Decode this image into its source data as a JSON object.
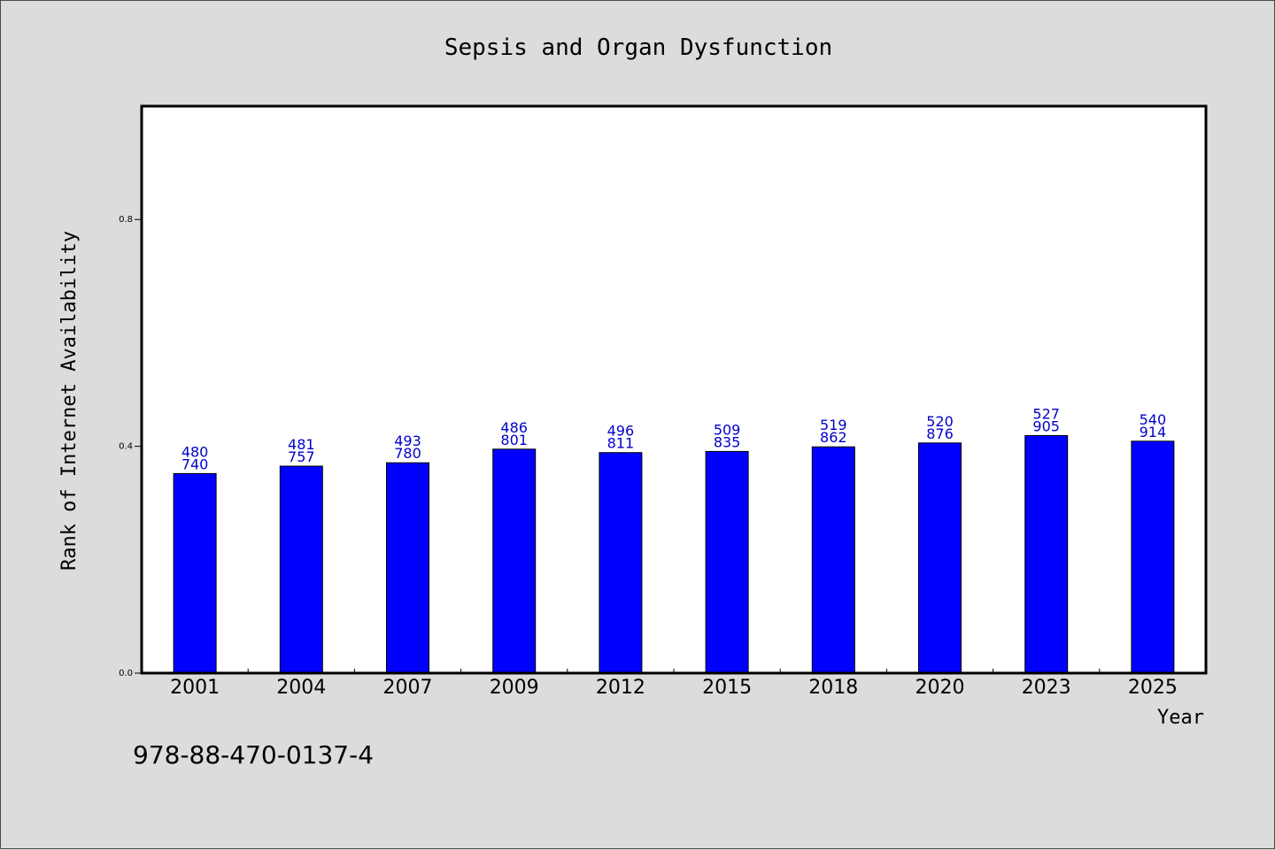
{
  "chart_data": {
    "type": "bar",
    "title": "Sepsis and Organ Dysfunction",
    "xlabel": "Year",
    "ylabel": "Rank of Internet Availability",
    "categories": [
      "2001",
      "2004",
      "2007",
      "2009",
      "2012",
      "2015",
      "2018",
      "2020",
      "2023",
      "2025"
    ],
    "values": [
      0.352,
      0.365,
      0.371,
      0.395,
      0.389,
      0.391,
      0.399,
      0.406,
      0.419,
      0.409
    ],
    "label_line1": [
      "480",
      "481",
      "493",
      "486",
      "496",
      "509",
      "519",
      "520",
      "527",
      "540"
    ],
    "label_line2": [
      "740",
      "757",
      "780",
      "801",
      "811",
      "835",
      "862",
      "876",
      "905",
      "914"
    ],
    "yticks": [
      0.0,
      0.4,
      0.8
    ],
    "ytick_labels": [
      "0.0",
      "0.4",
      "0.8"
    ],
    "ylim": [
      0.0,
      1.0
    ],
    "grid": false,
    "bar_color": "#0000ff",
    "label_color": "#0000cc",
    "background": "#dcdcdc",
    "plot_background": "#ffffff"
  },
  "footer": {
    "isbn": "978-88-470-0137-4"
  }
}
